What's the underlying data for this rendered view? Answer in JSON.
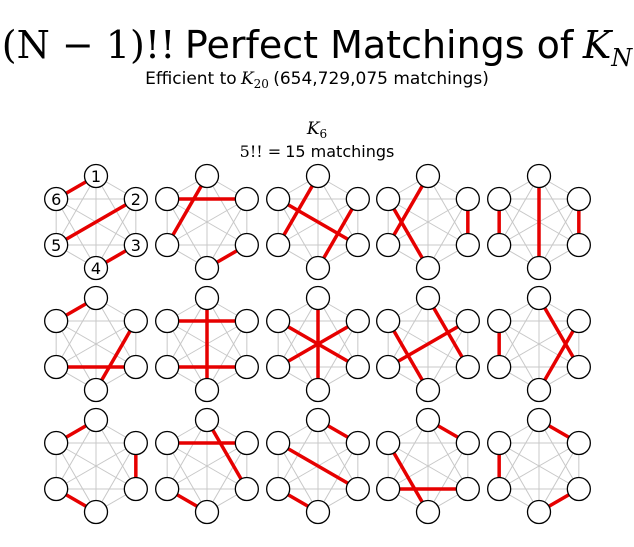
{
  "header": {
    "title": {
      "math": "(N − 1)!!",
      "text": "Perfect Matchings of",
      "math_base": "K",
      "math_sub": "N"
    },
    "subtitle": {
      "text_before": "Efficient to",
      "math_base": "K",
      "math_sub": "20",
      "text_after": "(654,729,075 matchings)"
    }
  },
  "graph": {
    "name_base": "K",
    "name_sub": "6",
    "count_math": "5!! =",
    "count_text": "15 matchings",
    "node_labels": [
      "1",
      "2",
      "3",
      "4",
      "5",
      "6"
    ],
    "matchings": [
      [
        [
          1,
          6
        ],
        [
          2,
          5
        ],
        [
          3,
          4
        ]
      ],
      [
        [
          1,
          5
        ],
        [
          2,
          6
        ],
        [
          3,
          4
        ]
      ],
      [
        [
          1,
          5
        ],
        [
          3,
          6
        ],
        [
          2,
          4
        ]
      ],
      [
        [
          1,
          5
        ],
        [
          4,
          6
        ],
        [
          2,
          3
        ]
      ],
      [
        [
          5,
          6
        ],
        [
          1,
          4
        ],
        [
          2,
          3
        ]
      ],
      [
        [
          1,
          6
        ],
        [
          2,
          4
        ],
        [
          3,
          5
        ]
      ],
      [
        [
          2,
          6
        ],
        [
          1,
          4
        ],
        [
          3,
          5
        ]
      ],
      [
        [
          1,
          4
        ],
        [
          2,
          5
        ],
        [
          3,
          6
        ]
      ],
      [
        [
          1,
          3
        ],
        [
          2,
          5
        ],
        [
          4,
          6
        ]
      ],
      [
        [
          5,
          6
        ],
        [
          1,
          3
        ],
        [
          2,
          4
        ]
      ],
      [
        [
          1,
          6
        ],
        [
          2,
          3
        ],
        [
          4,
          5
        ]
      ],
      [
        [
          2,
          6
        ],
        [
          1,
          3
        ],
        [
          4,
          5
        ]
      ],
      [
        [
          1,
          2
        ],
        [
          3,
          6
        ],
        [
          4,
          5
        ]
      ],
      [
        [
          1,
          2
        ],
        [
          4,
          6
        ],
        [
          3,
          5
        ]
      ],
      [
        [
          1,
          2
        ],
        [
          3,
          4
        ],
        [
          5,
          6
        ]
      ]
    ]
  }
}
